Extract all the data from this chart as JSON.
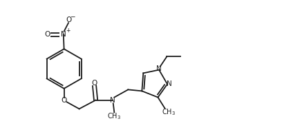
{
  "bg_color": "#ffffff",
  "line_color": "#1a1a1a",
  "lw": 1.3,
  "fs": 7.5,
  "fig_width": 4.21,
  "fig_height": 1.92,
  "dpi": 100,
  "xlim": [
    0,
    10.5
  ],
  "ylim": [
    0,
    4.5
  ]
}
